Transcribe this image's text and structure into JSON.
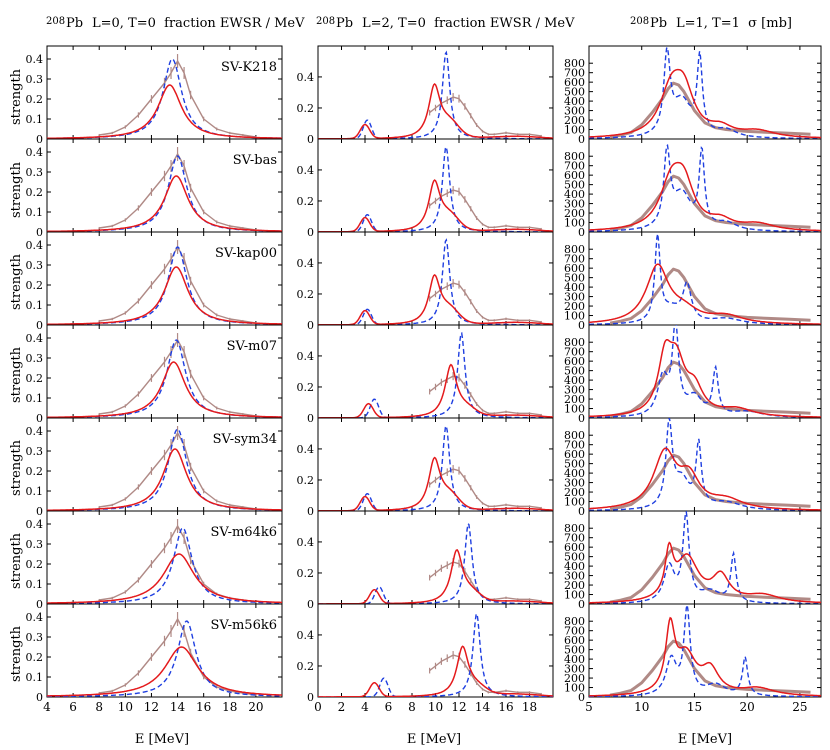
{
  "figure": {
    "nucleus": "208",
    "nucleus_sym": "Pb",
    "columns": [
      {
        "title": "L=0, T=0  fraction EWSR / MeV"
      },
      {
        "title": "L=2, T=0  fraction EWSR / MeV"
      },
      {
        "title": "L=1, T=1  σ [mb]"
      }
    ],
    "ylabel": "strength",
    "xlabels": [
      "E [MeV]",
      "E [MeV]",
      "E [MeV]"
    ],
    "parametrizations": [
      "SV-K218",
      "SV-bas",
      "SV-kap00",
      "SV-m07",
      "SV-sym34",
      "SV-m64k6",
      "SV-m56k6"
    ]
  },
  "colors": {
    "red": "#e41a1c",
    "blue": "#1f3fe0",
    "gray": "#b08a86"
  },
  "chart_data": [
    {
      "type": "line",
      "title": "208Pb L=0, T=0 fraction EWSR / MeV",
      "xlabel": "E [MeV]",
      "ylabel": "strength",
      "xlim": [
        4,
        22
      ],
      "ylim": [
        0,
        0.45
      ],
      "xticks": [
        4,
        6,
        8,
        10,
        12,
        14,
        16,
        18,
        20
      ],
      "yticks": [
        0,
        0.1,
        0.2,
        0.3,
        0.4
      ],
      "panels": [
        {
          "label": "SV-K218",
          "red": {
            "peak": 13.4,
            "height": 0.27,
            "width": 2.0
          },
          "blue": {
            "peak": 13.6,
            "height": 0.4,
            "width": 1.5
          }
        },
        {
          "label": "SV-bas",
          "red": {
            "peak": 13.9,
            "height": 0.28,
            "width": 2.0
          },
          "blue": {
            "peak": 14.0,
            "height": 0.38,
            "width": 1.5
          }
        },
        {
          "label": "SV-kap00",
          "red": {
            "peak": 13.9,
            "height": 0.29,
            "width": 2.0
          },
          "blue": {
            "peak": 14.0,
            "height": 0.39,
            "width": 1.5
          }
        },
        {
          "label": "SV-m07",
          "red": {
            "peak": 13.7,
            "height": 0.28,
            "width": 2.0
          },
          "blue": {
            "peak": 13.9,
            "height": 0.39,
            "width": 1.5
          }
        },
        {
          "label": "SV-sym34",
          "red": {
            "peak": 13.8,
            "height": 0.31,
            "width": 2.0
          },
          "blue": {
            "peak": 14.0,
            "height": 0.41,
            "width": 1.5
          }
        },
        {
          "label": "SV-m64k6",
          "red": {
            "peak": 14.1,
            "height": 0.25,
            "width": 2.6
          },
          "blue": {
            "peak": 14.4,
            "height": 0.38,
            "width": 1.5
          }
        },
        {
          "label": "SV-m56k6",
          "red": {
            "peak": 14.3,
            "height": 0.25,
            "width": 2.8
          },
          "blue": {
            "peak": 14.7,
            "height": 0.38,
            "width": 1.5
          }
        }
      ],
      "experiment": {
        "x": [
          8.0,
          9.0,
          10.0,
          11.0,
          12.0,
          13.0,
          13.5,
          14.0,
          14.5,
          15.0,
          16.0,
          17.0,
          18.0,
          19.0,
          20.0
        ],
        "y": [
          0.02,
          0.03,
          0.06,
          0.12,
          0.2,
          0.28,
          0.33,
          0.39,
          0.33,
          0.22,
          0.1,
          0.05,
          0.03,
          0.02,
          0.01
        ]
      }
    },
    {
      "type": "line",
      "title": "208Pb L=2, T=0 fraction EWSR / MeV",
      "xlabel": "E [MeV]",
      "ylabel": "strength",
      "xlim": [
        0,
        20
      ],
      "ylim": [
        0,
        0.58
      ],
      "xticks": [
        0,
        2,
        4,
        6,
        8,
        10,
        12,
        14,
        16,
        18
      ],
      "yticks": [
        0,
        0.2,
        0.4
      ],
      "panels": [
        {
          "label": "SV-K218",
          "red_low": [
            4.0,
            0.09
          ],
          "red_main": [
            9.9,
            0.33
          ],
          "red_sh": [
            11.2,
            0.22
          ],
          "blue_low": [
            4.2,
            0.12
          ],
          "blue_main": [
            10.9,
            0.56
          ]
        },
        {
          "label": "SV-bas",
          "red_low": [
            4.0,
            0.09
          ],
          "red_main": [
            9.9,
            0.31
          ],
          "red_sh": [
            11.2,
            0.22
          ],
          "blue_low": [
            4.2,
            0.11
          ],
          "blue_main": [
            10.9,
            0.55
          ]
        },
        {
          "label": "SV-kap00",
          "red_low": [
            4.0,
            0.09
          ],
          "red_main": [
            9.9,
            0.3
          ],
          "red_sh": [
            11.2,
            0.21
          ],
          "blue_low": [
            4.2,
            0.1
          ],
          "blue_main": [
            10.9,
            0.55
          ]
        },
        {
          "label": "SV-m07",
          "red_low": [
            4.3,
            0.09
          ],
          "red_main": [
            11.3,
            0.33
          ],
          "red_sh": [
            12.6,
            0.12
          ],
          "blue_low": [
            4.8,
            0.12
          ],
          "blue_main": [
            12.2,
            0.55
          ]
        },
        {
          "label": "SV-sym34",
          "red_low": [
            4.0,
            0.09
          ],
          "red_main": [
            9.9,
            0.32
          ],
          "red_sh": [
            11.2,
            0.22
          ],
          "blue_low": [
            4.2,
            0.11
          ],
          "blue_main": [
            10.9,
            0.55
          ]
        },
        {
          "label": "SV-m64k6",
          "red_low": [
            4.8,
            0.09
          ],
          "red_main": [
            11.8,
            0.33
          ],
          "red_sh": [
            13.0,
            0.14
          ],
          "blue_low": [
            5.2,
            0.11
          ],
          "blue_main": [
            12.8,
            0.52
          ]
        },
        {
          "label": "SV-m56k6",
          "red_low": [
            4.8,
            0.09
          ],
          "red_main": [
            12.3,
            0.31
          ],
          "red_sh": [
            13.5,
            0.12
          ],
          "blue_low": [
            5.6,
            0.12
          ],
          "blue_main": [
            13.5,
            0.54
          ]
        }
      ],
      "experiment": {
        "x": [
          9.5,
          10.0,
          10.5,
          11.0,
          11.5,
          12.0,
          12.5,
          13.0,
          13.5,
          14.0,
          14.5,
          15.0,
          16.0,
          17.0,
          18.0,
          19.0
        ],
        "y": [
          0.17,
          0.2,
          0.23,
          0.25,
          0.27,
          0.26,
          0.21,
          0.15,
          0.09,
          0.05,
          0.03,
          0.03,
          0.04,
          0.03,
          0.03,
          0.02
        ]
      }
    },
    {
      "type": "line",
      "title": "208Pb L=1, T=1 σ [mb]",
      "xlabel": "E [MeV]",
      "ylabel": "",
      "xlim": [
        5,
        27
      ],
      "ylim": [
        0,
        950
      ],
      "xticks": [
        5,
        10,
        15,
        20,
        25
      ],
      "yticks": [
        0,
        100,
        200,
        300,
        400,
        500,
        600,
        700,
        800
      ],
      "panels": [
        {
          "label": "SV-K218",
          "red_peaks": [
            [
              12.8,
              470,
              2.0
            ],
            [
              14.0,
              420,
              1.8
            ],
            [
              17.5,
              90,
              2.0
            ],
            [
              21.0,
              70,
              3.0
            ]
          ],
          "blue_peaks": [
            [
              12.4,
              820,
              0.6
            ],
            [
              15.5,
              790,
              0.5
            ],
            [
              13.8,
              380,
              1.8
            ],
            [
              18.0,
              80,
              2.0
            ]
          ]
        },
        {
          "label": "SV-bas",
          "red_peaks": [
            [
              12.8,
              470,
              2.0
            ],
            [
              14.0,
              420,
              1.8
            ],
            [
              17.5,
              90,
              2.0
            ],
            [
              21.0,
              70,
              3.0
            ]
          ],
          "blue_peaks": [
            [
              12.4,
              770,
              0.6
            ],
            [
              15.7,
              780,
              0.5
            ],
            [
              13.8,
              380,
              1.8
            ],
            [
              18.0,
              80,
              2.0
            ]
          ]
        },
        {
          "label": "SV-kap00",
          "red_peaks": [
            [
              11.5,
              600,
              2.0
            ],
            [
              14.0,
              120,
              2.5
            ],
            [
              18.0,
              80,
              3.0
            ]
          ],
          "blue_peaks": [
            [
              11.5,
              880,
              0.5
            ],
            [
              14.3,
              380,
              0.8
            ],
            [
              12.8,
              150,
              2.0
            ],
            [
              18.0,
              60,
              3.0
            ]
          ]
        },
        {
          "label": "SV-m07",
          "red_peaks": [
            [
              12.2,
              540,
              1.2
            ],
            [
              13.3,
              520,
              1.5
            ],
            [
              15.0,
              260,
              1.5
            ],
            [
              19.0,
              80,
              3.0
            ]
          ],
          "blue_peaks": [
            [
              13.2,
              920,
              0.6
            ],
            [
              17.0,
              480,
              0.5
            ],
            [
              12.0,
              400,
              1.0
            ],
            [
              15.0,
              200,
              1.5
            ],
            [
              20.0,
              60,
              3.0
            ]
          ]
        },
        {
          "label": "SV-sym34",
          "red_peaks": [
            [
              12.2,
              590,
              2.0
            ],
            [
              14.5,
              300,
              1.8
            ],
            [
              18.0,
              100,
              3.0
            ]
          ],
          "blue_peaks": [
            [
              12.6,
              860,
              0.6
            ],
            [
              15.4,
              650,
              0.5
            ],
            [
              13.8,
              300,
              1.5
            ],
            [
              18.0,
              80,
              3.0
            ]
          ]
        },
        {
          "label": "SV-m64k6",
          "red_peaks": [
            [
              12.6,
              460,
              0.7
            ],
            [
              14.3,
              470,
              2.0
            ],
            [
              17.5,
              260,
              1.5
            ],
            [
              21.5,
              80,
              3.0
            ]
          ],
          "blue_peaks": [
            [
              14.2,
              900,
              0.6
            ],
            [
              18.7,
              500,
              0.5
            ],
            [
              12.6,
              380,
              1.0
            ],
            [
              16.5,
              120,
              2.0
            ]
          ]
        },
        {
          "label": "SV-m56k6",
          "red_peaks": [
            [
              12.7,
              660,
              0.8
            ],
            [
              14.2,
              410,
              1.8
            ],
            [
              16.5,
              250,
              1.5
            ],
            [
              21.0,
              80,
              3.0
            ]
          ],
          "blue_peaks": [
            [
              14.3,
              900,
              0.6
            ],
            [
              19.8,
              400,
              0.5
            ],
            [
              12.8,
              380,
              1.0
            ],
            [
              17.0,
              120,
              2.0
            ]
          ]
        }
      ],
      "experiment": {
        "x": [
          7,
          8,
          9,
          10,
          11,
          12,
          12.5,
          13,
          13.5,
          14,
          15,
          16,
          17,
          18,
          19,
          20,
          22,
          24,
          26
        ],
        "y": [
          20,
          40,
          70,
          150,
          280,
          430,
          530,
          590,
          570,
          500,
          300,
          170,
          120,
          100,
          90,
          80,
          70,
          60,
          50
        ]
      }
    }
  ]
}
